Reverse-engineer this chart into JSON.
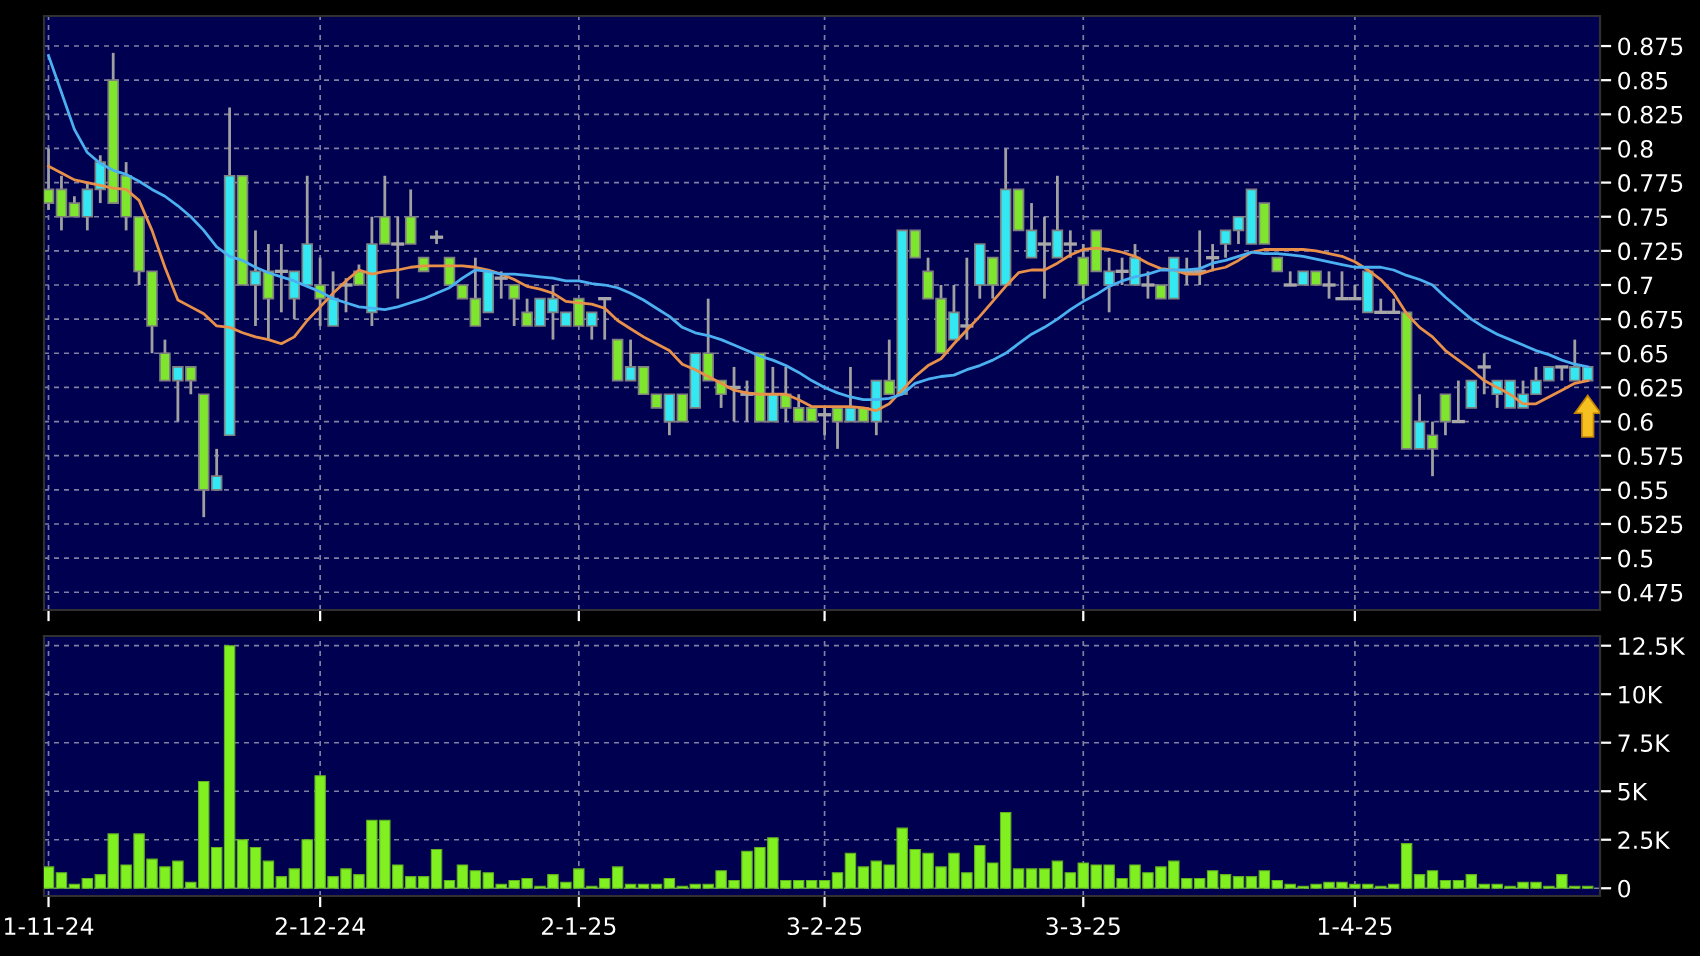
{
  "chart_data": [
    {
      "type": "candlestick",
      "ohlc": [
        [
          0.77,
          0.8,
          0.755,
          0.76
        ],
        [
          0.77,
          0.78,
          0.74,
          0.75
        ],
        [
          0.76,
          0.765,
          0.75,
          0.75
        ],
        [
          0.75,
          0.775,
          0.74,
          0.77
        ],
        [
          0.77,
          0.795,
          0.76,
          0.79
        ],
        [
          0.85,
          0.87,
          0.76,
          0.76
        ],
        [
          0.78,
          0.79,
          0.74,
          0.75
        ],
        [
          0.75,
          0.75,
          0.7,
          0.71
        ],
        [
          0.71,
          0.71,
          0.65,
          0.67
        ],
        [
          0.65,
          0.66,
          0.63,
          0.63
        ],
        [
          0.63,
          0.64,
          0.6,
          0.64
        ],
        [
          0.64,
          0.64,
          0.62,
          0.63
        ],
        [
          0.62,
          0.62,
          0.53,
          0.55
        ],
        [
          0.55,
          0.58,
          0.55,
          0.56
        ],
        [
          0.59,
          0.83,
          0.59,
          0.78
        ],
        [
          0.78,
          0.78,
          0.7,
          0.7
        ],
        [
          0.7,
          0.74,
          0.67,
          0.71
        ],
        [
          0.71,
          0.73,
          0.66,
          0.69
        ],
        [
          0.71,
          0.73,
          0.68,
          0.71
        ],
        [
          0.69,
          0.71,
          0.675,
          0.71
        ],
        [
          0.7,
          0.78,
          0.7,
          0.73
        ],
        [
          0.7,
          0.72,
          0.67,
          0.69
        ],
        [
          0.67,
          0.71,
          0.67,
          0.69
        ],
        [
          0.7,
          0.705,
          0.68,
          0.7
        ],
        [
          0.71,
          0.715,
          0.7,
          0.7
        ],
        [
          0.68,
          0.75,
          0.67,
          0.73
        ],
        [
          0.75,
          0.78,
          0.73,
          0.73
        ],
        [
          0.73,
          0.75,
          0.69,
          0.73
        ],
        [
          0.75,
          0.77,
          0.73,
          0.73
        ],
        [
          0.72,
          0.72,
          0.71,
          0.71
        ],
        [
          0.735,
          0.74,
          0.73,
          0.735
        ],
        [
          0.72,
          0.72,
          0.7,
          0.7
        ],
        [
          0.7,
          0.7,
          0.69,
          0.69
        ],
        [
          0.69,
          0.72,
          0.67,
          0.67
        ],
        [
          0.68,
          0.71,
          0.68,
          0.71
        ],
        [
          0.705,
          0.71,
          0.69,
          0.705
        ],
        [
          0.7,
          0.7,
          0.67,
          0.69
        ],
        [
          0.68,
          0.69,
          0.67,
          0.67
        ],
        [
          0.67,
          0.69,
          0.67,
          0.69
        ],
        [
          0.68,
          0.7,
          0.66,
          0.69
        ],
        [
          0.67,
          0.68,
          0.67,
          0.68
        ],
        [
          0.69,
          0.69,
          0.67,
          0.67
        ],
        [
          0.67,
          0.68,
          0.66,
          0.68
        ],
        [
          0.69,
          0.69,
          0.66,
          0.69
        ],
        [
          0.66,
          0.66,
          0.63,
          0.63
        ],
        [
          0.63,
          0.66,
          0.63,
          0.64
        ],
        [
          0.64,
          0.64,
          0.62,
          0.62
        ],
        [
          0.62,
          0.62,
          0.61,
          0.61
        ],
        [
          0.6,
          0.62,
          0.59,
          0.62
        ],
        [
          0.62,
          0.62,
          0.6,
          0.6
        ],
        [
          0.61,
          0.65,
          0.61,
          0.65
        ],
        [
          0.65,
          0.69,
          0.63,
          0.63
        ],
        [
          0.63,
          0.63,
          0.61,
          0.62
        ],
        [
          0.625,
          0.64,
          0.6,
          0.625
        ],
        [
          0.62,
          0.63,
          0.6,
          0.62
        ],
        [
          0.65,
          0.65,
          0.6,
          0.6
        ],
        [
          0.6,
          0.64,
          0.6,
          0.62
        ],
        [
          0.62,
          0.64,
          0.6,
          0.61
        ],
        [
          0.61,
          0.62,
          0.6,
          0.6
        ],
        [
          0.61,
          0.61,
          0.6,
          0.6
        ],
        [
          0.605,
          0.61,
          0.59,
          0.605
        ],
        [
          0.61,
          0.61,
          0.58,
          0.6
        ],
        [
          0.6,
          0.64,
          0.6,
          0.61
        ],
        [
          0.61,
          0.61,
          0.6,
          0.6
        ],
        [
          0.6,
          0.63,
          0.59,
          0.63
        ],
        [
          0.63,
          0.66,
          0.62,
          0.62
        ],
        [
          0.62,
          0.74,
          0.62,
          0.74
        ],
        [
          0.74,
          0.74,
          0.72,
          0.72
        ],
        [
          0.71,
          0.72,
          0.69,
          0.69
        ],
        [
          0.69,
          0.7,
          0.65,
          0.65
        ],
        [
          0.66,
          0.7,
          0.66,
          0.68
        ],
        [
          0.67,
          0.72,
          0.66,
          0.67
        ],
        [
          0.7,
          0.73,
          0.69,
          0.73
        ],
        [
          0.72,
          0.72,
          0.69,
          0.7
        ],
        [
          0.7,
          0.8,
          0.7,
          0.77
        ],
        [
          0.77,
          0.77,
          0.74,
          0.74
        ],
        [
          0.72,
          0.76,
          0.72,
          0.74
        ],
        [
          0.73,
          0.75,
          0.69,
          0.73
        ],
        [
          0.72,
          0.78,
          0.72,
          0.74
        ],
        [
          0.73,
          0.74,
          0.72,
          0.73
        ],
        [
          0.72,
          0.73,
          0.69,
          0.7
        ],
        [
          0.74,
          0.74,
          0.71,
          0.71
        ],
        [
          0.7,
          0.72,
          0.68,
          0.71
        ],
        [
          0.71,
          0.72,
          0.7,
          0.71
        ],
        [
          0.7,
          0.73,
          0.7,
          0.72
        ],
        [
          0.7,
          0.71,
          0.69,
          0.7
        ],
        [
          0.7,
          0.7,
          0.69,
          0.69
        ],
        [
          0.69,
          0.72,
          0.69,
          0.72
        ],
        [
          0.71,
          0.72,
          0.7,
          0.71
        ],
        [
          0.71,
          0.74,
          0.7,
          0.71
        ],
        [
          0.72,
          0.73,
          0.71,
          0.72
        ],
        [
          0.73,
          0.74,
          0.72,
          0.74
        ],
        [
          0.74,
          0.75,
          0.73,
          0.75
        ],
        [
          0.73,
          0.77,
          0.73,
          0.77
        ],
        [
          0.76,
          0.76,
          0.73,
          0.73
        ],
        [
          0.72,
          0.72,
          0.71,
          0.71
        ],
        [
          0.7,
          0.71,
          0.7,
          0.7
        ],
        [
          0.7,
          0.71,
          0.7,
          0.71
        ],
        [
          0.71,
          0.71,
          0.7,
          0.7
        ],
        [
          0.7,
          0.71,
          0.69,
          0.7
        ],
        [
          0.69,
          0.71,
          0.69,
          0.69
        ],
        [
          0.69,
          0.7,
          0.69,
          0.69
        ],
        [
          0.68,
          0.71,
          0.68,
          0.71
        ],
        [
          0.68,
          0.69,
          0.68,
          0.68
        ],
        [
          0.68,
          0.69,
          0.68,
          0.68
        ],
        [
          0.68,
          0.68,
          0.58,
          0.58
        ],
        [
          0.58,
          0.62,
          0.58,
          0.6
        ],
        [
          0.59,
          0.6,
          0.56,
          0.58
        ],
        [
          0.62,
          0.62,
          0.59,
          0.6
        ],
        [
          0.6,
          0.63,
          0.6,
          0.6
        ],
        [
          0.61,
          0.63,
          0.61,
          0.63
        ],
        [
          0.64,
          0.65,
          0.62,
          0.64
        ],
        [
          0.62,
          0.63,
          0.61,
          0.63
        ],
        [
          0.61,
          0.63,
          0.61,
          0.63
        ],
        [
          0.61,
          0.63,
          0.61,
          0.62
        ],
        [
          0.62,
          0.64,
          0.62,
          0.63
        ],
        [
          0.63,
          0.64,
          0.63,
          0.64
        ],
        [
          0.64,
          0.64,
          0.63,
          0.64
        ],
        [
          0.63,
          0.66,
          0.63,
          0.64
        ],
        [
          0.63,
          0.64,
          0.63,
          0.64
        ]
      ],
      "colors": [
        "#7fe62e",
        "#7fe62e",
        "#7fe62e",
        "#33e8f2",
        "#33e8f2",
        "#7fe62e",
        "#7fe62e",
        "#7fe62e",
        "#7fe62e",
        "#7fe62e",
        "#33e8f2",
        "#7fe62e",
        "#7fe62e",
        "#33e8f2",
        "#33e8f2",
        "#7fe62e",
        "#33e8f2",
        "#7fe62e",
        "#a8a8a8",
        "#33e8f2",
        "#33e8f2",
        "#7fe62e",
        "#33e8f2",
        "#a8a8a8",
        "#7fe62e",
        "#33e8f2",
        "#7fe62e",
        "#a8a8a8",
        "#7fe62e",
        "#7fe62e",
        "#a8a8a8",
        "#7fe62e",
        "#7fe62e",
        "#7fe62e",
        "#33e8f2",
        "#a8a8a8",
        "#7fe62e",
        "#7fe62e",
        "#33e8f2",
        "#33e8f2",
        "#33e8f2",
        "#7fe62e",
        "#33e8f2",
        "#a8a8a8",
        "#7fe62e",
        "#33e8f2",
        "#7fe62e",
        "#7fe62e",
        "#33e8f2",
        "#7fe62e",
        "#33e8f2",
        "#7fe62e",
        "#7fe62e",
        "#a8a8a8",
        "#a8a8a8",
        "#7fe62e",
        "#33e8f2",
        "#7fe62e",
        "#7fe62e",
        "#7fe62e",
        "#a8a8a8",
        "#7fe62e",
        "#33e8f2",
        "#7fe62e",
        "#33e8f2",
        "#7fe62e",
        "#33e8f2",
        "#7fe62e",
        "#7fe62e",
        "#7fe62e",
        "#33e8f2",
        "#a8a8a8",
        "#33e8f2",
        "#7fe62e",
        "#33e8f2",
        "#7fe62e",
        "#33e8f2",
        "#a8a8a8",
        "#33e8f2",
        "#a8a8a8",
        "#7fe62e",
        "#7fe62e",
        "#33e8f2",
        "#a8a8a8",
        "#33e8f2",
        "#a8a8a8",
        "#7fe62e",
        "#33e8f2",
        "#a8a8a8",
        "#a8a8a8",
        "#a8a8a8",
        "#33e8f2",
        "#33e8f2",
        "#33e8f2",
        "#7fe62e",
        "#7fe62e",
        "#a8a8a8",
        "#33e8f2",
        "#7fe62e",
        "#a8a8a8",
        "#a8a8a8",
        "#a8a8a8",
        "#33e8f2",
        "#a8a8a8",
        "#a8a8a8",
        "#7fe62e",
        "#33e8f2",
        "#7fe62e",
        "#7fe62e",
        "#a8a8a8",
        "#33e8f2",
        "#a8a8a8",
        "#33e8f2",
        "#33e8f2",
        "#33e8f2",
        "#33e8f2",
        "#33e8f2",
        "#a8a8a8",
        "#33e8f2",
        "#33e8f2"
      ],
      "series": [
        {
          "type": "line",
          "color": "#e8904a",
          "values": [
            0.787,
            0.782,
            0.777,
            0.775,
            0.773,
            0.771,
            0.77,
            0.762,
            0.74,
            0.713,
            0.689,
            0.684,
            0.679,
            0.67,
            0.669,
            0.665,
            0.662,
            0.66,
            0.657,
            0.662,
            0.674,
            0.684,
            0.694,
            0.703,
            0.711,
            0.708,
            0.71,
            0.711,
            0.713,
            0.714,
            0.714,
            0.714,
            0.714,
            0.713,
            0.711,
            0.708,
            0.704,
            0.699,
            0.697,
            0.694,
            0.688,
            0.687,
            0.686,
            0.683,
            0.674,
            0.668,
            0.662,
            0.657,
            0.652,
            0.642,
            0.638,
            0.633,
            0.628,
            0.623,
            0.621,
            0.62,
            0.62,
            0.62,
            0.616,
            0.611,
            0.611,
            0.611,
            0.611,
            0.61,
            0.608,
            0.613,
            0.623,
            0.633,
            0.641,
            0.646,
            0.657,
            0.667,
            0.677,
            0.688,
            0.699,
            0.709,
            0.711,
            0.711,
            0.716,
            0.722,
            0.726,
            0.727,
            0.726,
            0.724,
            0.721,
            0.716,
            0.712,
            0.711,
            0.708,
            0.708,
            0.711,
            0.713,
            0.718,
            0.724,
            0.726,
            0.726,
            0.726,
            0.726,
            0.725,
            0.723,
            0.721,
            0.717,
            0.711,
            0.704,
            0.694,
            0.679,
            0.669,
            0.662,
            0.652,
            0.645,
            0.638,
            0.63,
            0.625,
            0.62,
            0.613,
            0.613,
            0.618,
            0.623,
            0.628,
            0.63
          ]
        },
        {
          "type": "line",
          "color": "#4ab0f0",
          "values": [
            0.868,
            0.841,
            0.814,
            0.797,
            0.789,
            0.784,
            0.781,
            0.776,
            0.77,
            0.765,
            0.758,
            0.75,
            0.74,
            0.728,
            0.721,
            0.718,
            0.713,
            0.709,
            0.706,
            0.703,
            0.699,
            0.695,
            0.69,
            0.687,
            0.684,
            0.683,
            0.682,
            0.684,
            0.687,
            0.69,
            0.694,
            0.698,
            0.705,
            0.711,
            0.71,
            0.708,
            0.708,
            0.707,
            0.706,
            0.705,
            0.703,
            0.703,
            0.701,
            0.7,
            0.698,
            0.694,
            0.689,
            0.683,
            0.677,
            0.669,
            0.665,
            0.663,
            0.66,
            0.656,
            0.652,
            0.648,
            0.645,
            0.641,
            0.636,
            0.63,
            0.625,
            0.621,
            0.618,
            0.616,
            0.616,
            0.617,
            0.62,
            0.628,
            0.631,
            0.633,
            0.634,
            0.638,
            0.641,
            0.645,
            0.65,
            0.657,
            0.664,
            0.669,
            0.675,
            0.682,
            0.688,
            0.693,
            0.699,
            0.703,
            0.706,
            0.708,
            0.711,
            0.711,
            0.711,
            0.712,
            0.716,
            0.718,
            0.721,
            0.724,
            0.723,
            0.723,
            0.722,
            0.721,
            0.719,
            0.717,
            0.715,
            0.713,
            0.713,
            0.713,
            0.711,
            0.707,
            0.704,
            0.7,
            0.691,
            0.683,
            0.675,
            0.669,
            0.664,
            0.66,
            0.656,
            0.652,
            0.649,
            0.645,
            0.642,
            0.64
          ]
        }
      ],
      "ylim": [
        0.462,
        0.897
      ],
      "yticks": [
        0.475,
        0.5,
        0.525,
        0.55,
        0.575,
        0.6,
        0.625,
        0.65,
        0.675,
        0.7,
        0.725,
        0.75,
        0.775,
        0.8,
        0.825,
        0.85,
        0.875
      ],
      "grid": true,
      "tick_labels": "y"
    },
    {
      "type": "bar",
      "categories": [
        "1-11-24",
        null,
        null,
        null,
        null,
        null,
        null,
        null,
        null,
        null,
        null,
        null,
        null,
        null,
        null,
        null,
        null,
        null,
        null,
        null,
        null,
        "2-12-24",
        null,
        null,
        null,
        null,
        null,
        null,
        null,
        null,
        null,
        null,
        null,
        null,
        null,
        null,
        null,
        null,
        null,
        null,
        null,
        "2-1-25",
        null,
        null,
        null,
        null,
        null,
        null,
        null,
        null,
        null,
        null,
        null,
        null,
        null,
        null,
        null,
        null,
        null,
        null,
        "3-2-25",
        null,
        null,
        null,
        null,
        null,
        null,
        null,
        null,
        null,
        null,
        null,
        null,
        null,
        null,
        null,
        null,
        null,
        null,
        null,
        "3-3-25",
        null,
        null,
        null,
        null,
        null,
        null,
        null,
        null,
        null,
        null,
        null,
        null,
        null,
        null,
        null,
        null,
        null,
        null,
        null,
        null,
        "1-4-25",
        null,
        null,
        null,
        null,
        null,
        null,
        null,
        null,
        null,
        null,
        null,
        null,
        null,
        null,
        null,
        null,
        null,
        null
      ],
      "color": "#80f020",
      "values": [
        1100,
        800,
        200,
        500,
        700,
        2800,
        1200,
        2800,
        1500,
        1100,
        1400,
        300,
        5500,
        2100,
        12500,
        2500,
        2100,
        1400,
        600,
        1000,
        2500,
        5800,
        600,
        1000,
        700,
        3500,
        3500,
        1200,
        600,
        600,
        2000,
        400,
        1200,
        900,
        800,
        200,
        400,
        500,
        100,
        700,
        300,
        1000,
        100,
        500,
        1100,
        200,
        200,
        200,
        500,
        100,
        200,
        200,
        900,
        400,
        1900,
        2100,
        2600,
        400,
        400,
        400,
        400,
        800,
        1800,
        1100,
        1400,
        1200,
        3100,
        2000,
        1800,
        1100,
        1800,
        800,
        2200,
        1300,
        3900,
        1000,
        1000,
        1000,
        1400,
        800,
        1300,
        1200,
        1200,
        500,
        1200,
        800,
        1100,
        1400,
        500,
        500,
        900,
        700,
        600,
        600,
        900,
        400,
        200,
        100,
        200,
        300,
        300,
        200,
        200,
        100,
        200,
        2300,
        700,
        900,
        400,
        400,
        700,
        200,
        200,
        100,
        300,
        300,
        100,
        700,
        100,
        100
      ],
      "ylim": [
        -400,
        13000
      ],
      "yticks": [
        0,
        {
          "value": 2500,
          "label": "2.5K"
        },
        {
          "value": 5000,
          "label": "5K"
        },
        {
          "value": 7500,
          "label": "7.5K"
        },
        {
          "value": 10000,
          "label": "10K"
        },
        {
          "value": 12500,
          "label": "12.5K"
        }
      ],
      "grid": true
    }
  ]
}
